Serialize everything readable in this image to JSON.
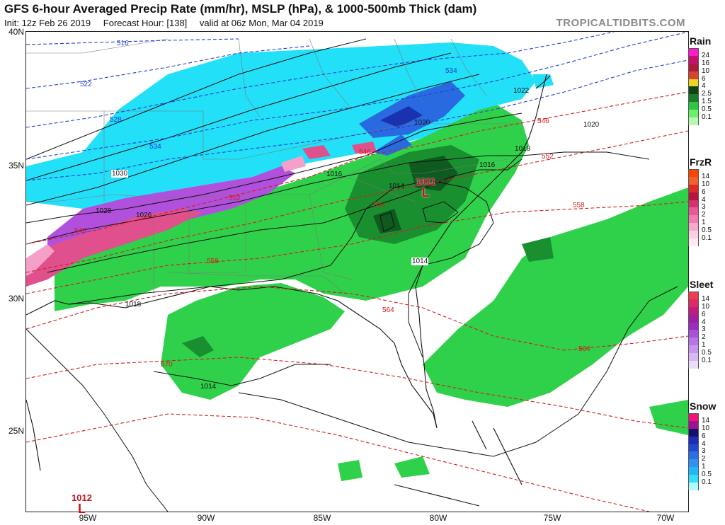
{
  "header": {
    "title": "GFS 6-hour Averaged Precip Rate (mm/hr), MSLP (hPa), & 1000-500mb Thick (dam)",
    "init": "Init: 12z Feb 26 2019",
    "forecast_hour": "Forecast Hour: [138]",
    "valid": "valid at 06z Mon, Mar 04 2019",
    "brand": "TROPICALTIDBITS.COM"
  },
  "axes": {
    "longitudes": [
      "95W",
      "90W",
      "85W",
      "80W",
      "75W",
      "70W"
    ],
    "latitudes": [
      "40N",
      "35N",
      "30N",
      "25N"
    ]
  },
  "isobar_labels": [
    "1030",
    "1028",
    "1026",
    "1022",
    "1020",
    "1020",
    "1018",
    "1018",
    "1016",
    "1016",
    "1014",
    "1014",
    "1014"
  ],
  "thickness_labels": {
    "blue": [
      "516",
      "522",
      "528",
      "534",
      "534"
    ],
    "red": [
      "546",
      "546",
      "546",
      "552",
      "552",
      "558",
      "558",
      "558",
      "564",
      "564",
      "570"
    ]
  },
  "lows": [
    {
      "pressure": "1011",
      "symbol": "L"
    },
    {
      "pressure": "1012",
      "symbol": "L"
    }
  ],
  "legends": [
    {
      "name": "Rain",
      "levels": [
        "24",
        "16",
        "10",
        "6",
        "4",
        "2.5",
        "1.5",
        "0.5",
        "0.1"
      ],
      "colors": [
        "#ff19d0",
        "#c7116e",
        "#ad1a3c",
        "#d4472c",
        "#f0d424",
        "#0e4416",
        "#1c7b2a",
        "#2ec743",
        "#6cf06a",
        "#b8f7b0"
      ]
    },
    {
      "name": "FrzR",
      "levels": [
        "14",
        "10",
        "6",
        "4",
        "3",
        "2",
        "1",
        "0.5",
        "0.1"
      ],
      "colors": [
        "#ff4400",
        "#f06030",
        "#dc2a2a",
        "#b4143e",
        "#d2326e",
        "#e85a96",
        "#f07cb0",
        "#f7a8cc",
        "#fbd0e2",
        "#ffe8f0"
      ]
    },
    {
      "name": "Sleet",
      "levels": [
        "14",
        "10",
        "6",
        "4",
        "3",
        "2",
        "1",
        "0.5",
        "0.1"
      ],
      "colors": [
        "#f03c50",
        "#e02a66",
        "#c21a82",
        "#a01ea0",
        "#9a2cc0",
        "#a850d8",
        "#b874e4",
        "#c696ec",
        "#d8b8f4",
        "#ebdcfa"
      ]
    },
    {
      "name": "Snow",
      "levels": [
        "14",
        "10",
        "6",
        "4",
        "3",
        "2",
        "1",
        "0.5",
        "0.1"
      ],
      "colors": [
        "#f0147a",
        "#a01090",
        "#12106a",
        "#1e2eb4",
        "#2248d2",
        "#2a70e4",
        "#3490f0",
        "#20b8f4",
        "#30e0f8",
        "#b0f8fc"
      ]
    }
  ]
}
